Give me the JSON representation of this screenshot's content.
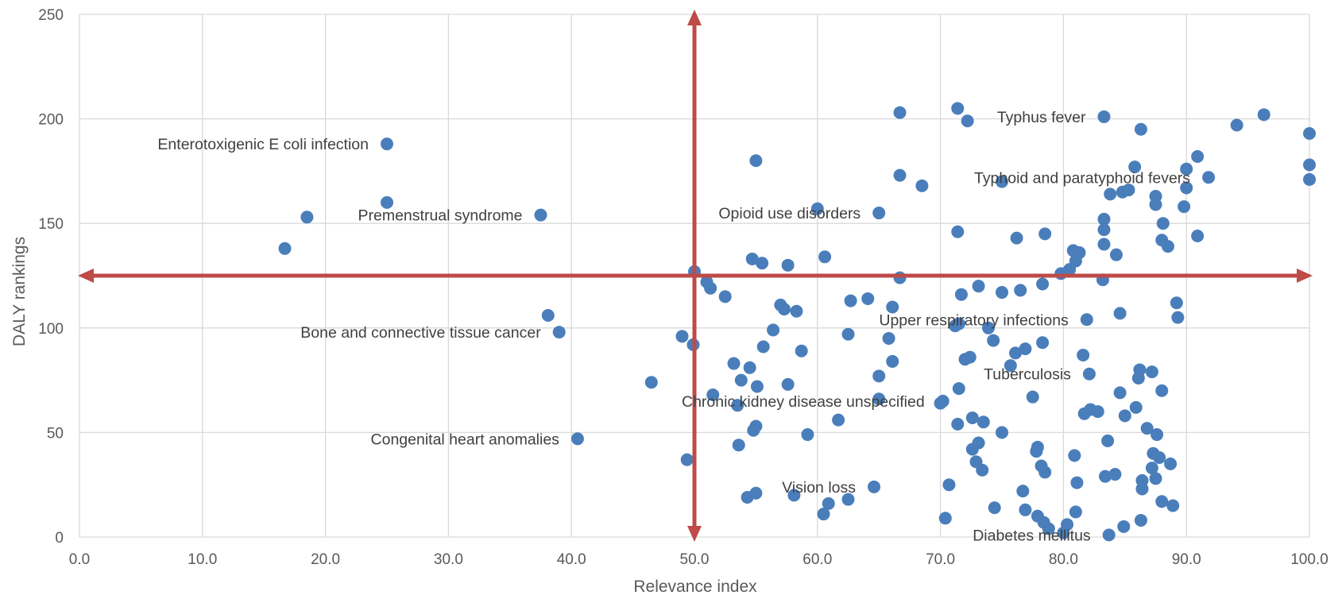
{
  "chart_data": {
    "type": "scatter",
    "xlabel": "Relevance index",
    "ylabel": "DALY rankings",
    "xlim": [
      0,
      100
    ],
    "ylim": [
      0,
      250
    ],
    "xticks": [
      "0.0",
      "10.0",
      "20.0",
      "30.0",
      "40.0",
      "50.0",
      "60.0",
      "70.0",
      "80.0",
      "90.0",
      "100.0"
    ],
    "yticks": [
      "0",
      "50",
      "100",
      "150",
      "200",
      "250"
    ],
    "grid": true,
    "colors": {
      "points": "#4a7ebb",
      "reference_lines": "#be4b48",
      "grid": "#d9d9d9"
    },
    "reference_lines": {
      "x": 50,
      "y": 125,
      "style": "double-headed arrows"
    },
    "points": [
      [
        16.7,
        138
      ],
      [
        18.5,
        153
      ],
      [
        25.0,
        188
      ],
      [
        25.0,
        160
      ],
      [
        37.5,
        154
      ],
      [
        38.1,
        106
      ],
      [
        39.0,
        98
      ],
      [
        40.5,
        47
      ],
      [
        46.5,
        74
      ],
      [
        49.0,
        96
      ],
      [
        49.4,
        37
      ],
      [
        49.9,
        92
      ],
      [
        50.0,
        127
      ],
      [
        51.0,
        122
      ],
      [
        51.3,
        119
      ],
      [
        52.5,
        115
      ],
      [
        51.5,
        68
      ],
      [
        53.2,
        83
      ],
      [
        53.5,
        63
      ],
      [
        53.6,
        44
      ],
      [
        53.8,
        75
      ],
      [
        54.3,
        19
      ],
      [
        54.5,
        81
      ],
      [
        54.7,
        133
      ],
      [
        54.8,
        51
      ],
      [
        55.0,
        53
      ],
      [
        55.0,
        21
      ],
      [
        55.0,
        180
      ],
      [
        55.1,
        72
      ],
      [
        55.5,
        131
      ],
      [
        55.6,
        91
      ],
      [
        56.4,
        99
      ],
      [
        57.0,
        111
      ],
      [
        57.3,
        109
      ],
      [
        57.6,
        73
      ],
      [
        57.6,
        130
      ],
      [
        58.1,
        20
      ],
      [
        58.3,
        108
      ],
      [
        58.7,
        89
      ],
      [
        59.2,
        49
      ],
      [
        60.0,
        157
      ],
      [
        60.5,
        11
      ],
      [
        60.6,
        134
      ],
      [
        60.9,
        16
      ],
      [
        61.7,
        56
      ],
      [
        62.5,
        18
      ],
      [
        62.5,
        97
      ],
      [
        62.7,
        113
      ],
      [
        64.1,
        114
      ],
      [
        64.6,
        24
      ],
      [
        65.0,
        77
      ],
      [
        65.0,
        66
      ],
      [
        65.0,
        155
      ],
      [
        65.8,
        95
      ],
      [
        66.1,
        84
      ],
      [
        66.1,
        110
      ],
      [
        66.7,
        124
      ],
      [
        66.7,
        173
      ],
      [
        66.7,
        203
      ],
      [
        68.5,
        168
      ],
      [
        70.0,
        64
      ],
      [
        70.2,
        65
      ],
      [
        70.4,
        9
      ],
      [
        70.7,
        25
      ],
      [
        71.2,
        101
      ],
      [
        71.4,
        146
      ],
      [
        71.4,
        205
      ],
      [
        71.4,
        54
      ],
      [
        71.5,
        102
      ],
      [
        71.5,
        71
      ],
      [
        71.7,
        116
      ],
      [
        72.0,
        85
      ],
      [
        72.2,
        199
      ],
      [
        72.4,
        86
      ],
      [
        72.6,
        42
      ],
      [
        72.6,
        57
      ],
      [
        72.9,
        36
      ],
      [
        73.1,
        45
      ],
      [
        73.1,
        120
      ],
      [
        73.4,
        32
      ],
      [
        73.5,
        55
      ],
      [
        73.9,
        100
      ],
      [
        74.3,
        94
      ],
      [
        74.4,
        14
      ],
      [
        75.0,
        117
      ],
      [
        75.0,
        170
      ],
      [
        75.0,
        50
      ],
      [
        75.7,
        82
      ],
      [
        76.1,
        88
      ],
      [
        76.2,
        143
      ],
      [
        76.5,
        118
      ],
      [
        76.7,
        22
      ],
      [
        76.9,
        13
      ],
      [
        76.9,
        90
      ],
      [
        77.5,
        67
      ],
      [
        77.8,
        41
      ],
      [
        77.9,
        43
      ],
      [
        77.9,
        10
      ],
      [
        78.2,
        34
      ],
      [
        78.3,
        121
      ],
      [
        78.3,
        93
      ],
      [
        78.5,
        145
      ],
      [
        78.5,
        31
      ],
      [
        78.4,
        7
      ],
      [
        78.8,
        4
      ],
      [
        79.8,
        126
      ],
      [
        80.0,
        2
      ],
      [
        80.3,
        6
      ],
      [
        80.5,
        128
      ],
      [
        80.8,
        137
      ],
      [
        80.9,
        39
      ],
      [
        81.0,
        132
      ],
      [
        81.0,
        12
      ],
      [
        81.1,
        26
      ],
      [
        81.3,
        136
      ],
      [
        81.6,
        87
      ],
      [
        81.7,
        59
      ],
      [
        81.9,
        104
      ],
      [
        82.1,
        78
      ],
      [
        82.2,
        61
      ],
      [
        82.8,
        60
      ],
      [
        83.2,
        123
      ],
      [
        83.3,
        201
      ],
      [
        83.3,
        147
      ],
      [
        83.3,
        152
      ],
      [
        83.3,
        140
      ],
      [
        83.4,
        29
      ],
      [
        83.6,
        46
      ],
      [
        83.7,
        1
      ],
      [
        83.8,
        164
      ],
      [
        84.2,
        30
      ],
      [
        84.3,
        135
      ],
      [
        84.6,
        69
      ],
      [
        84.6,
        107
      ],
      [
        84.8,
        165
      ],
      [
        84.9,
        5
      ],
      [
        85.0,
        58
      ],
      [
        85.3,
        166
      ],
      [
        85.8,
        177
      ],
      [
        85.9,
        62
      ],
      [
        86.1,
        76
      ],
      [
        86.2,
        80
      ],
      [
        86.3,
        8
      ],
      [
        86.3,
        195
      ],
      [
        86.4,
        23
      ],
      [
        86.4,
        27
      ],
      [
        86.8,
        52
      ],
      [
        87.2,
        79
      ],
      [
        87.2,
        33
      ],
      [
        87.3,
        40
      ],
      [
        87.5,
        28
      ],
      [
        87.5,
        159
      ],
      [
        87.5,
        163
      ],
      [
        87.6,
        49
      ],
      [
        87.8,
        38
      ],
      [
        88.0,
        70
      ],
      [
        88.0,
        142
      ],
      [
        88.0,
        17
      ],
      [
        88.1,
        150
      ],
      [
        88.5,
        139
      ],
      [
        88.7,
        35
      ],
      [
        88.9,
        15
      ],
      [
        89.2,
        112
      ],
      [
        89.3,
        105
      ],
      [
        89.8,
        158
      ],
      [
        90.0,
        176
      ],
      [
        90.0,
        167
      ],
      [
        90.9,
        182
      ],
      [
        90.9,
        144
      ],
      [
        91.8,
        172
      ],
      [
        94.1,
        197
      ],
      [
        96.3,
        202
      ],
      [
        100.0,
        193
      ],
      [
        100.0,
        178
      ],
      [
        100.0,
        171
      ]
    ],
    "annotations": [
      {
        "text": "Enterotoxigenic E coli infection",
        "x": 25.0,
        "y": 188
      },
      {
        "text": "Premenstrual syndrome",
        "x": 37.5,
        "y": 154
      },
      {
        "text": "Bone and connective tissue cancer",
        "x": 39.0,
        "y": 98
      },
      {
        "text": "Congenital heart anomalies",
        "x": 40.5,
        "y": 47
      },
      {
        "text": "Opioid use disorders",
        "x": 65.0,
        "y": 155
      },
      {
        "text": "Typhus fever",
        "x": 83.3,
        "y": 201
      },
      {
        "text": "Typhoid and paratyphoid fevers",
        "x": 91.8,
        "y": 172
      },
      {
        "text": "Upper respiratory infections",
        "x": 81.9,
        "y": 104
      },
      {
        "text": "Tuberculosis",
        "x": 82.1,
        "y": 78
      },
      {
        "text": "Chronic kidney disease unspecified",
        "x": 70.2,
        "y": 65
      },
      {
        "text": "Vision loss",
        "x": 64.6,
        "y": 24
      },
      {
        "text": "Diabetes mellitus",
        "x": 83.7,
        "y": 1
      }
    ]
  }
}
